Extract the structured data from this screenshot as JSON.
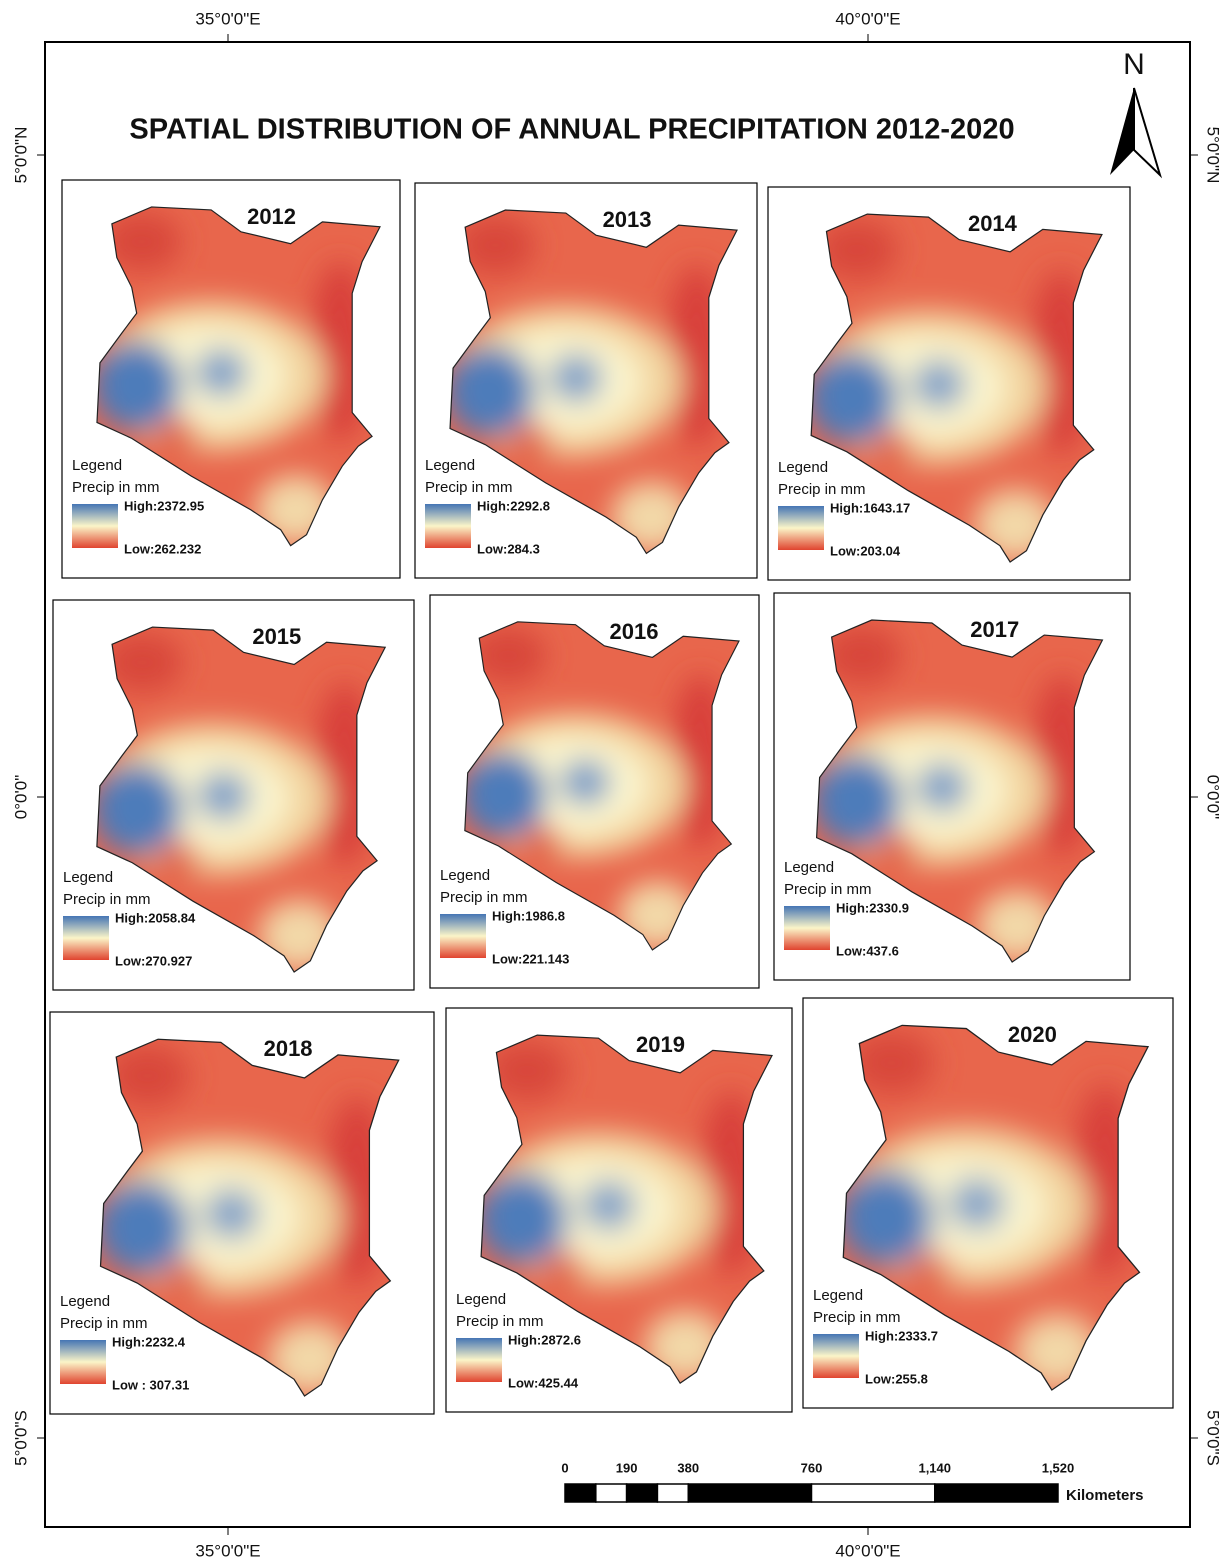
{
  "title": "SPATIAL DISTRIBUTION OF ANNUAL PRECIPITATION 2012-2020",
  "north": "N",
  "longitude_labels": [
    "35°0'0\"E",
    "40°0'0\"E"
  ],
  "latitude_labels": [
    "5°0'0\"N",
    "0°0'0\"",
    "5°0'0\"S"
  ],
  "panels": [
    {
      "year": "2012",
      "legend_title": "Legend",
      "legend_subtitle": "Precip in mm",
      "high": "High:2372.95",
      "low": "Low:262.232"
    },
    {
      "year": "2013",
      "legend_title": "Legend",
      "legend_subtitle": "Precip in mm",
      "high": "High:2292.8",
      "low": "Low:284.3"
    },
    {
      "year": "2014",
      "legend_title": "Legend",
      "legend_subtitle": "Precip in mm",
      "high": "High:1643.17",
      "low": "Low:203.04"
    },
    {
      "year": "2015",
      "legend_title": "Legend",
      "legend_subtitle": "Precip in mm",
      "high": "High:2058.84",
      "low": "Low:270.927"
    },
    {
      "year": "2016",
      "legend_title": "Legend",
      "legend_subtitle": "Precip in mm",
      "high": "High:1986.8",
      "low": "Low:221.143"
    },
    {
      "year": "2017",
      "legend_title": "Legend",
      "legend_subtitle": "Precip in mm",
      "high": "High:2330.9",
      "low": "Low:437.6"
    },
    {
      "year": "2018",
      "legend_title": "Legend",
      "legend_subtitle": "Precip in mm",
      "high": "High:2232.4",
      "low": "Low : 307.31"
    },
    {
      "year": "2019",
      "legend_title": "Legend",
      "legend_subtitle": "Precip in mm",
      "high": "High:2872.6",
      "low": "Low:425.44"
    },
    {
      "year": "2020",
      "legend_title": "Legend",
      "legend_subtitle": "Precip in mm",
      "high": "High:2333.7",
      "low": "Low:255.8"
    }
  ],
  "scale_bar": {
    "ticks": [
      0,
      190,
      380,
      760,
      {
        "value": 1140,
        "label": "1,140"
      },
      {
        "value": 1520,
        "label": "1,520"
      }
    ],
    "unit": "Kilometers"
  }
}
